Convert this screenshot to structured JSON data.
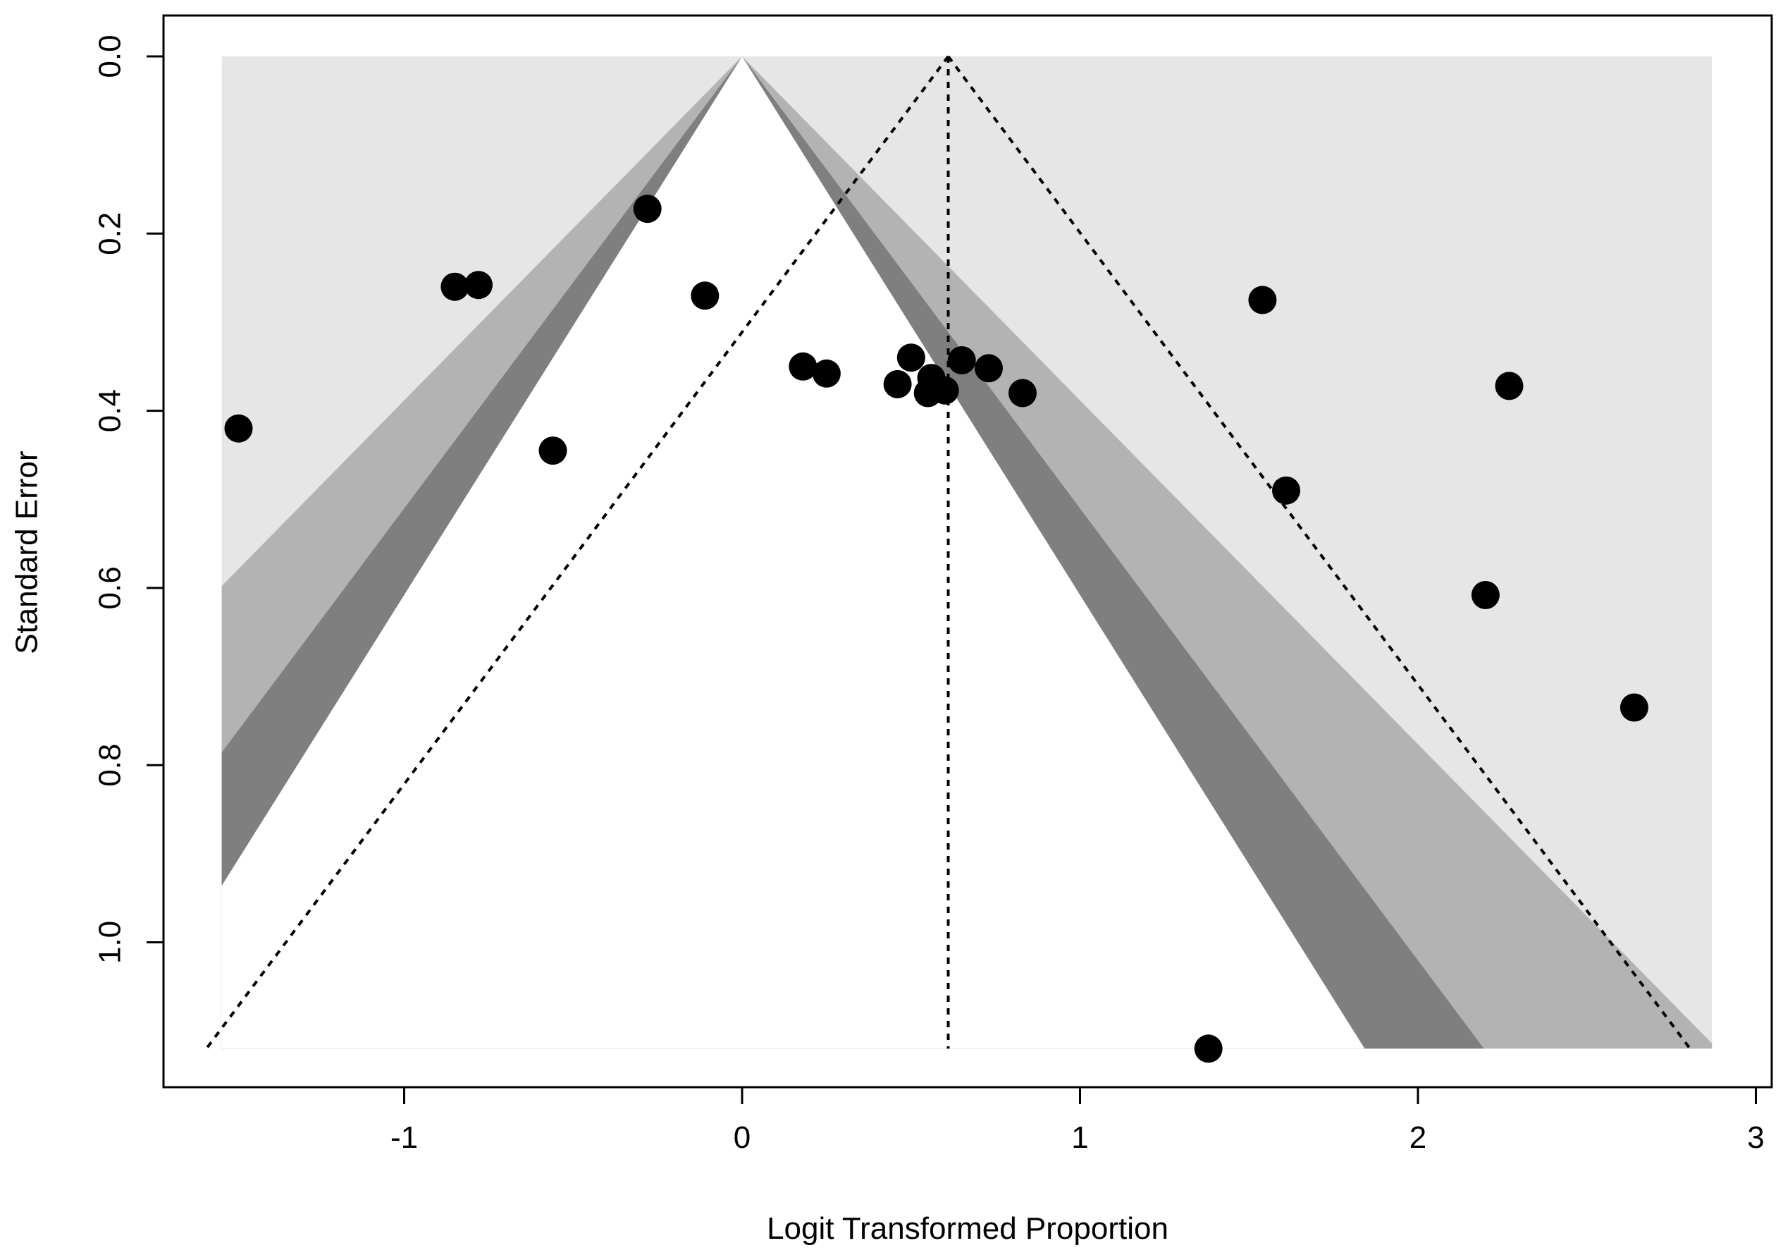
{
  "chart_data": {
    "type": "scatter",
    "title": "",
    "xlabel": "Logit Transformed Proportion",
    "ylabel": "Standard Error",
    "xlim": [
      -1.67,
      3.0
    ],
    "ylim": [
      0.0,
      1.12
    ],
    "y_reversed": true,
    "x_ticks": [
      -1,
      0,
      1,
      2,
      3
    ],
    "x_tick_labels": [
      "-1",
      "0",
      "1",
      "2",
      "3"
    ],
    "y_ticks": [
      0.0,
      0.2,
      0.4,
      0.6,
      0.8,
      1.0
    ],
    "y_tick_labels": [
      "0.0",
      "0.2",
      "0.4",
      "0.6",
      "0.8",
      "1.0"
    ],
    "grid": false,
    "legend": "none",
    "contour_center": 0,
    "contour_z": [
      1.645,
      1.96,
      2.576
    ],
    "contour_x_range": [
      -1.54,
      2.87
    ],
    "contour_colors": [
      "#ffffff",
      "#7f7f7f",
      "#b3b3b3",
      "#e6e6e6"
    ],
    "pooled_estimate": 0.61,
    "ci_multiplier": 1.96,
    "points": [
      {
        "x": -1.49,
        "y": 0.42
      },
      {
        "x": -0.85,
        "y": 0.26
      },
      {
        "x": -0.78,
        "y": 0.258
      },
      {
        "x": -0.56,
        "y": 0.445
      },
      {
        "x": -0.28,
        "y": 0.172
      },
      {
        "x": -0.11,
        "y": 0.27
      },
      {
        "x": 0.18,
        "y": 0.35
      },
      {
        "x": 0.25,
        "y": 0.358
      },
      {
        "x": 0.46,
        "y": 0.37
      },
      {
        "x": 0.5,
        "y": 0.34
      },
      {
        "x": 0.55,
        "y": 0.38
      },
      {
        "x": 0.56,
        "y": 0.363
      },
      {
        "x": 0.6,
        "y": 0.377
      },
      {
        "x": 0.65,
        "y": 0.343
      },
      {
        "x": 0.73,
        "y": 0.352
      },
      {
        "x": 0.83,
        "y": 0.38
      },
      {
        "x": 1.38,
        "y": 1.12
      },
      {
        "x": 1.54,
        "y": 0.275
      },
      {
        "x": 1.61,
        "y": 0.49
      },
      {
        "x": 2.2,
        "y": 0.608
      },
      {
        "x": 2.27,
        "y": 0.372
      },
      {
        "x": 2.64,
        "y": 0.735
      }
    ]
  }
}
